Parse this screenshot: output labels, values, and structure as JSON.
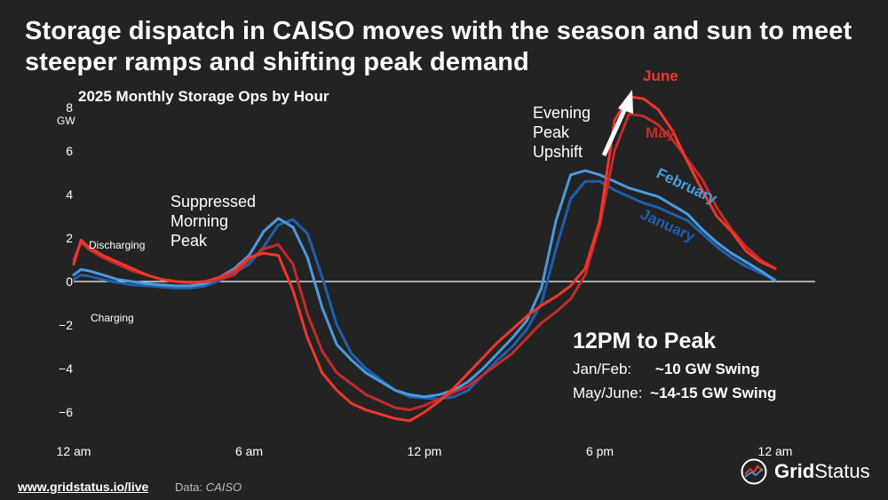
{
  "title": "Storage dispatch in CAISO moves with the season and sun to meet steeper ramps and shifting peak demand",
  "subtitle": "2025 Monthly Storage Ops by Hour",
  "annotations": {
    "discharging": "Discharging",
    "charging": "Charging",
    "suppressed": [
      "Suppressed",
      "Morning",
      "Peak"
    ],
    "evening": [
      "Evening",
      "Peak",
      "Upshift"
    ],
    "swing_title": "12PM to Peak",
    "swing_rows": [
      {
        "label": "Jan/Feb:",
        "value": "~10 GW Swing"
      },
      {
        "label": "May/June:",
        "value": "~14-15 GW Swing"
      }
    ]
  },
  "footer": {
    "url": "www.gridstatus.io/live",
    "source_label": "Data:",
    "source": "CAISO"
  },
  "logo": {
    "grid": "Grid",
    "status": "Status"
  },
  "colors": {
    "background": "#232323",
    "January": "#1f5fae",
    "February": "#4a9ae0",
    "May": "#c42b2b",
    "June": "#f2362b"
  },
  "chart_data": {
    "type": "line",
    "xlabel": "",
    "ylabel": "GW",
    "ylim": [
      -6.8,
      8.5
    ],
    "xlim": [
      0,
      24
    ],
    "x_ticks": [
      {
        "value": 0,
        "label": "12 am"
      },
      {
        "value": 6,
        "label": "6 am"
      },
      {
        "value": 12,
        "label": "12 pm"
      },
      {
        "value": 18,
        "label": "6 pm"
      },
      {
        "value": 24,
        "label": "12 am"
      }
    ],
    "y_ticks": [
      {
        "value": 8,
        "label": "8"
      },
      {
        "value": 6,
        "label": "6"
      },
      {
        "value": 4,
        "label": "4"
      },
      {
        "value": 2,
        "label": "2"
      },
      {
        "value": 0,
        "label": "0"
      },
      {
        "value": -2,
        "label": "−2"
      },
      {
        "value": -4,
        "label": "−4"
      },
      {
        "value": -6,
        "label": "−6"
      }
    ],
    "series": [
      {
        "name": "January",
        "color": "#1f5fae",
        "x": [
          0,
          0.25,
          0.5,
          1,
          1.5,
          2,
          2.5,
          3,
          3.5,
          4,
          4.5,
          5,
          5.5,
          6,
          6.5,
          7,
          7.5,
          8,
          8.5,
          9,
          9.5,
          10,
          10.5,
          11,
          11.5,
          12,
          12.5,
          13,
          13.5,
          14,
          14.5,
          15,
          15.5,
          16,
          16.5,
          17,
          17.5,
          18,
          18.5,
          19,
          19.5,
          20,
          20.5,
          21,
          21.5,
          22,
          22.5,
          23,
          23.5,
          24
        ],
        "y": [
          0.1,
          0.3,
          0.25,
          0.1,
          -0.05,
          -0.15,
          -0.2,
          -0.25,
          -0.3,
          -0.3,
          -0.2,
          0.05,
          0.4,
          0.8,
          1.6,
          2.6,
          2.85,
          2.2,
          0.2,
          -2.0,
          -3.3,
          -4.0,
          -4.5,
          -5.0,
          -5.3,
          -5.35,
          -5.4,
          -5.3,
          -5.0,
          -4.3,
          -3.6,
          -3.0,
          -2.2,
          -1.0,
          1.5,
          3.8,
          4.6,
          4.6,
          4.2,
          3.9,
          3.6,
          3.4,
          3.1,
          2.8,
          2.2,
          1.6,
          1.1,
          0.7,
          0.4,
          0.05
        ]
      },
      {
        "name": "February",
        "color": "#4a9ae0",
        "x": [
          0,
          0.25,
          0.5,
          1,
          1.5,
          2,
          2.5,
          3,
          3.5,
          4,
          4.5,
          5,
          5.5,
          6,
          6.5,
          7,
          7.5,
          8,
          8.5,
          9,
          9.5,
          10,
          10.5,
          11,
          11.5,
          12,
          12.5,
          13,
          13.5,
          14,
          14.5,
          15,
          15.5,
          16,
          16.5,
          17,
          17.5,
          18,
          18.5,
          19,
          19.5,
          20,
          20.5,
          21,
          21.5,
          22,
          22.5,
          23,
          23.5,
          24
        ],
        "y": [
          0.3,
          0.55,
          0.5,
          0.3,
          0.1,
          0.0,
          -0.1,
          -0.15,
          -0.2,
          -0.2,
          -0.1,
          0.2,
          0.6,
          1.2,
          2.3,
          2.9,
          2.5,
          1.1,
          -1.2,
          -2.9,
          -3.6,
          -4.2,
          -4.6,
          -5.0,
          -5.2,
          -5.3,
          -5.2,
          -5.0,
          -4.6,
          -4.0,
          -3.3,
          -2.6,
          -1.8,
          -0.3,
          2.8,
          4.9,
          5.1,
          4.9,
          4.6,
          4.3,
          4.1,
          3.9,
          3.5,
          3.1,
          2.4,
          1.8,
          1.3,
          0.9,
          0.5,
          0.05
        ]
      },
      {
        "name": "May",
        "color": "#c42b2b",
        "x": [
          0,
          0.25,
          0.5,
          1,
          1.5,
          2,
          2.5,
          3,
          3.5,
          4,
          4.5,
          5,
          5.5,
          6,
          6.5,
          7,
          7.5,
          8,
          8.5,
          9,
          9.5,
          10,
          10.5,
          11,
          11.5,
          12,
          12.5,
          13,
          13.5,
          14,
          14.5,
          15,
          15.5,
          16,
          16.5,
          17,
          17.5,
          18,
          18.5,
          19,
          19.5,
          20,
          20.5,
          21,
          21.5,
          22,
          22.5,
          23,
          23.5,
          24
        ],
        "y": [
          1.0,
          1.8,
          1.5,
          1.1,
          0.8,
          0.5,
          0.3,
          0.1,
          0.0,
          -0.05,
          0.0,
          0.1,
          0.3,
          1.0,
          1.5,
          1.7,
          0.8,
          -1.5,
          -3.2,
          -4.2,
          -4.7,
          -5.2,
          -5.5,
          -5.8,
          -5.9,
          -5.7,
          -5.4,
          -5.1,
          -4.8,
          -4.3,
          -3.8,
          -3.3,
          -2.6,
          -1.9,
          -1.4,
          -0.8,
          0.3,
          2.6,
          6.0,
          7.7,
          7.6,
          7.2,
          6.5,
          5.6,
          4.7,
          3.4,
          2.4,
          1.6,
          1.0,
          0.6
        ]
      },
      {
        "name": "June",
        "color": "#f2362b",
        "x": [
          0,
          0.25,
          0.5,
          1,
          1.5,
          2,
          2.5,
          3,
          3.5,
          4,
          4.5,
          5,
          5.5,
          6,
          6.5,
          7,
          7.5,
          8,
          8.5,
          9,
          9.5,
          10,
          10.5,
          11,
          11.5,
          12,
          12.5,
          13,
          13.5,
          14,
          14.5,
          15,
          15.5,
          16,
          16.5,
          17,
          17.5,
          18,
          18.5,
          19,
          19.5,
          20,
          20.5,
          21,
          21.5,
          22,
          22.5,
          23,
          23.5,
          24
        ],
        "y": [
          0.8,
          1.9,
          1.6,
          1.2,
          0.9,
          0.6,
          0.3,
          0.1,
          0.0,
          -0.05,
          0.0,
          0.2,
          0.5,
          1.1,
          1.3,
          1.2,
          -0.4,
          -2.6,
          -4.2,
          -5.0,
          -5.6,
          -5.9,
          -6.1,
          -6.3,
          -6.4,
          -6.0,
          -5.5,
          -4.9,
          -4.2,
          -3.5,
          -2.8,
          -2.2,
          -1.6,
          -1.1,
          -0.7,
          -0.2,
          0.6,
          2.8,
          7.4,
          8.5,
          8.4,
          7.9,
          6.9,
          5.5,
          4.2,
          3.0,
          2.3,
          1.4,
          0.9,
          0.6
        ]
      }
    ],
    "series_labels": [
      "June",
      "May",
      "February",
      "January"
    ],
    "grid": false,
    "zero_line": true
  }
}
